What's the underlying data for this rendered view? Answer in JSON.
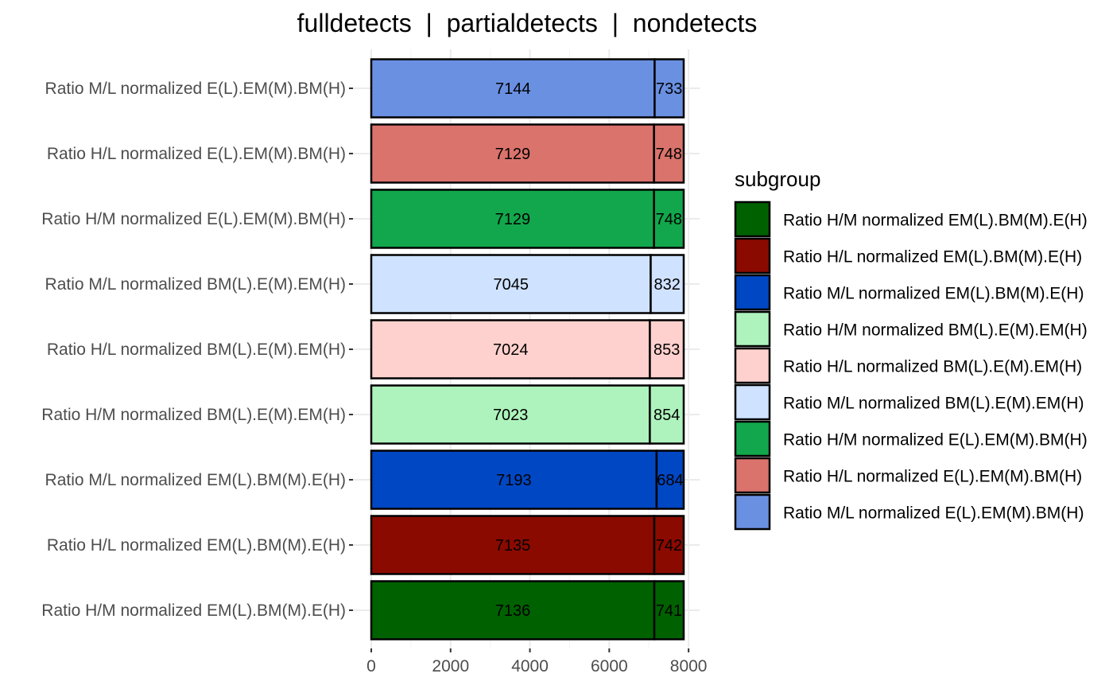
{
  "chart_data": {
    "type": "bar",
    "orientation": "horizontal",
    "stacked": true,
    "title": "fulldetects  |  partialdetects  |  nondetects",
    "xlabel": "",
    "ylabel": "",
    "xlim": [
      0,
      8000
    ],
    "xticks": [
      0,
      2000,
      4000,
      6000,
      8000
    ],
    "xtick_labels": [
      "0",
      "2000",
      "4000",
      "6000",
      "8000"
    ],
    "grid": true,
    "legend": {
      "title": "subgroup",
      "position": "right",
      "entries": [
        {
          "label": "Ratio H/M normalized EM(L).BM(M).E(H)",
          "color": "#006100"
        },
        {
          "label": "Ratio H/L normalized EM(L).BM(M).E(H)",
          "color": "#8B0A00"
        },
        {
          "label": "Ratio M/L normalized EM(L).BM(M).E(H)",
          "color": "#0047C3"
        },
        {
          "label": "Ratio H/M normalized BM(L).E(M).EM(H)",
          "color": "#AEF3BD"
        },
        {
          "label": "Ratio H/L normalized BM(L).E(M).EM(H)",
          "color": "#FFD1CE"
        },
        {
          "label": "Ratio M/L normalized BM(L).E(M).EM(H)",
          "color": "#CFE2FF"
        },
        {
          "label": "Ratio H/M normalized E(L).EM(M).BM(H)",
          "color": "#12A74C"
        },
        {
          "label": "Ratio H/L normalized E(L).EM(M).BM(H)",
          "color": "#DA736C"
        },
        {
          "label": "Ratio M/L normalized E(L).EM(M).BM(H)",
          "color": "#6A90E2"
        }
      ]
    },
    "categories": [
      "Ratio M/L normalized E(L).EM(M).BM(H)",
      "Ratio H/L normalized E(L).EM(M).BM(H)",
      "Ratio H/M normalized E(L).EM(M).BM(H)",
      "Ratio M/L normalized BM(L).E(M).EM(H)",
      "Ratio H/L normalized BM(L).E(M).EM(H)",
      "Ratio H/M normalized BM(L).E(M).EM(H)",
      "Ratio M/L normalized EM(L).BM(M).E(H)",
      "Ratio H/L normalized EM(L).BM(M).E(H)",
      "Ratio H/M normalized EM(L).BM(M).E(H)"
    ],
    "colors": [
      "#6A90E2",
      "#DA736C",
      "#12A74C",
      "#CFE2FF",
      "#FFD1CE",
      "#AEF3BD",
      "#0047C3",
      "#8B0A00",
      "#006100"
    ],
    "series": [
      {
        "values": [
          7144,
          7129,
          7129,
          7045,
          7024,
          7023,
          7193,
          7135,
          7136
        ]
      },
      {
        "values": [
          733,
          748,
          748,
          832,
          853,
          854,
          684,
          742,
          741
        ]
      },
      {
        "values": [
          0,
          0,
          0,
          0,
          0,
          0,
          0,
          0,
          0
        ]
      }
    ]
  }
}
